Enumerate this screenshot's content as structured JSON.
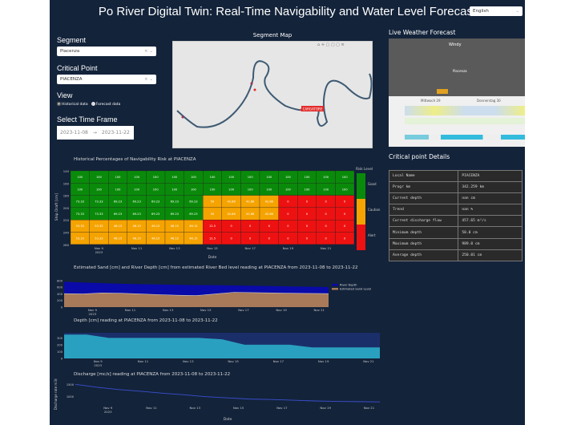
{
  "header": {
    "title": "Po River Digital Twin: Real-Time Navigability and Water Level Forecast",
    "language": "English"
  },
  "sidebar": {
    "segment_label": "Segment",
    "segment_value": "Piacenza",
    "critical_label": "Critical Point",
    "critical_value": "PIACENZA",
    "view_label": "View",
    "view_options": [
      "Historical data",
      "Forecast data"
    ],
    "view_selected": "Historical data",
    "timeframe_label": "Select Time Frame",
    "date_start": "2023-11-08",
    "date_arrow": "→",
    "date_end": "2023-11-22"
  },
  "map": {
    "title": "Segment Map",
    "marker_label": "CARGATORE",
    "colors": {
      "river": "#3d5a73",
      "marker": "#e32b2b"
    }
  },
  "weather": {
    "title": "Live Weather Forecast",
    "brand": "Windy",
    "city": "Piacenza",
    "days": [
      "Mittwoch 29",
      "Donnerstag 30"
    ]
  },
  "details": {
    "title": "Critical point Details",
    "rows": [
      [
        "Local Name",
        "PIACENZA"
      ],
      [
        "Progr km",
        "342.259 km"
      ],
      [
        "Current depth",
        "nan cm"
      ],
      [
        "Trend",
        "nan %"
      ],
      [
        "Current discharge flow",
        "457.65 m³/s"
      ],
      [
        "Minimum depth",
        "50.0 cm"
      ],
      [
        "Maximum depth",
        "989.0 cm"
      ],
      [
        "Average depth",
        "250.01 cm"
      ]
    ]
  },
  "chart_data": [
    {
      "type": "heatmap",
      "title": "Historical Percentages of Navigability Risk at PIACENZA",
      "xlabel": "Date",
      "ylabel": "Ship Draft [cm]",
      "x": [
        "2023-11-08",
        "2023-11-09",
        "2023-11-10",
        "2023-11-11",
        "2023-11-12",
        "2023-11-13",
        "2023-11-14",
        "2023-11-15",
        "2023-11-16",
        "2023-11-17",
        "2023-11-18",
        "2023-11-19",
        "2023-11-20",
        "2023-11-21",
        "2023-11-22"
      ],
      "x_ticks": [
        "Nov 9\n2023",
        "Nov 11",
        "Nov 13",
        "Nov 15",
        "Nov 17",
        "Nov 19",
        "Nov 21"
      ],
      "y": [
        140,
        160,
        180,
        200,
        220,
        240
      ],
      "y_ticks": [
        "140",
        "160",
        "180",
        "200",
        "220",
        "240",
        "260"
      ],
      "z": [
        [
          100,
          100,
          100,
          100,
          100,
          100,
          100,
          100,
          100,
          100,
          100,
          100,
          100,
          100,
          100
        ],
        [
          100,
          100,
          100,
          100,
          100,
          100,
          100,
          100,
          100,
          100,
          100,
          100,
          100,
          100,
          100
        ],
        [
          73.33,
          73.33,
          69.23,
          69.23,
          69.23,
          69.23,
          69.23,
          50,
          42.86,
          42.86,
          42.86,
          0,
          0,
          0,
          0
        ],
        [
          73.33,
          73.33,
          69.23,
          69.23,
          69.23,
          69.23,
          69.23,
          50,
          42.86,
          42.86,
          42.86,
          0,
          0,
          0,
          0
        ],
        [
          53.33,
          53.33,
          46.15,
          46.15,
          46.15,
          46.15,
          46.15,
          12.5,
          0,
          0,
          0,
          0,
          0,
          0,
          0
        ],
        [
          53.33,
          53.33,
          46.15,
          46.15,
          46.15,
          46.15,
          46.15,
          12.5,
          0,
          0,
          0,
          0,
          0,
          0,
          0
        ]
      ],
      "legend_title": "Risk Level",
      "legend": [
        {
          "name": "Good",
          "color": "#0a8a0a"
        },
        {
          "name": "Caution",
          "color": "#f5a300"
        },
        {
          "name": "Alert",
          "color": "#ee1111"
        }
      ]
    },
    {
      "type": "area",
      "title": "Estimated Sand [cm] and  River Depth [cm] from estimated River Bed level reading at PIACENZA from 2023-11-08 to 2023-11-22",
      "x_ticks": [
        "Nov 9\n2023",
        "Nov 11",
        "Nov 13",
        "Nov 15",
        "Nov 17",
        "Nov 19",
        "Nov 21"
      ],
      "y_ticks": [
        0,
        200,
        400,
        600,
        800
      ],
      "ylim": [
        0,
        900
      ],
      "series": [
        {
          "name": "River Depth",
          "color": "#0a0aa8",
          "values": [
            760,
            740,
            720,
            700,
            690,
            680,
            670,
            660,
            660,
            650,
            640,
            630,
            620,
            610,
            600
          ]
        },
        {
          "name": "Estimated Sand Level",
          "color": "#a87a5a",
          "values": [
            410,
            400,
            430,
            420,
            400,
            380,
            360,
            350,
            400,
            450,
            440,
            430,
            420,
            415,
            410
          ]
        }
      ]
    },
    {
      "type": "area",
      "title": "Depth [cm] reading at PIACENZA from 2023-11-08 to 2023-11-22",
      "x_ticks": [
        "Nov 9\n2023",
        "Nov 11",
        "Nov 13",
        "Nov 15",
        "Nov 17",
        "Nov 19",
        "Nov 21"
      ],
      "y_ticks": [
        0,
        100,
        200,
        300
      ],
      "ylim": [
        0,
        380
      ],
      "series": [
        {
          "name": "",
          "color": "#2aa0c0",
          "values": [
            350,
            350,
            300,
            300,
            300,
            300,
            300,
            280,
            200,
            200,
            200,
            160,
            160,
            160,
            160
          ]
        }
      ]
    },
    {
      "type": "line",
      "title": "Discharge [mc/s] reading at PIACENZA from 2023-11-08 to 2023-11-22",
      "xlabel": "Date",
      "ylabel": "Discharge rate m3/s",
      "x_ticks": [
        "Nov 9\n2023",
        "Nov 11",
        "Nov 13",
        "Nov 15",
        "Nov 17",
        "Nov 19",
        "Nov 21"
      ],
      "y_ticks": [
        1000,
        1500
      ],
      "ylim": [
        650,
        1600
      ],
      "series": [
        {
          "name": "",
          "color": "#3a4fd0",
          "values": [
            1520,
            1400,
            1300,
            1230,
            1150,
            1080,
            1000,
            950,
            900,
            880,
            850,
            820,
            800,
            790,
            780
          ]
        }
      ]
    }
  ]
}
